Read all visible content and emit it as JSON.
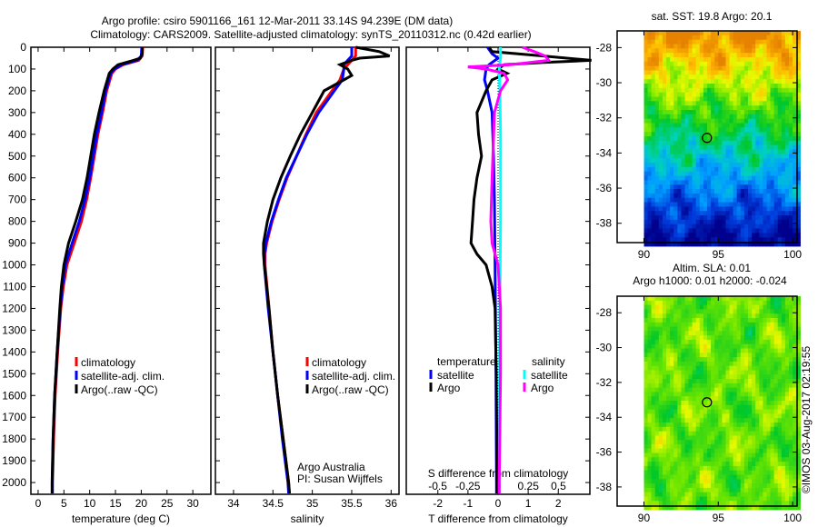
{
  "title": {
    "line1": "Argo profile: csiro 5901166_161 12-Mar-2011 33.14S 94.239E (DM data)",
    "line2": "Climatology: CARS2009. Satellite-adjusted climatology: synTS_20110312.nc (0.42d earlier)"
  },
  "footer": "©IMOS 03-Aug-2017 02:19:55",
  "chart_data": [
    {
      "type": "line",
      "id": "temperature",
      "xlabel": "temperature (deg C)",
      "ylabel": "",
      "xlim": [
        -1.4,
        33.5
      ],
      "ylim": [
        2054,
        0
      ],
      "xticks": [
        "0",
        "5",
        "10",
        "15",
        "20",
        "25",
        "30"
      ],
      "yticks": [
        "0",
        "100",
        "200",
        "300",
        "400",
        "500",
        "600",
        "700",
        "800",
        "900",
        "1000",
        "1100",
        "1200",
        "1300",
        "1400",
        "1500",
        "1600",
        "1700",
        "1800",
        "1900",
        "2000"
      ],
      "legend": [
        "climatology",
        "satellite-adj. clim.",
        "Argo(..raw -QC)"
      ],
      "series": [
        {
          "name": "climatology",
          "color": "#ff0000",
          "depth": [
            0,
            40,
            60,
            80,
            100,
            120,
            200,
            300,
            400,
            500,
            600,
            700,
            800,
            900,
            1000,
            1100,
            1200,
            1400,
            1600,
            1800,
            2000,
            2050
          ],
          "values": [
            20.3,
            20.2,
            19.5,
            16.5,
            15,
            14.3,
            13.3,
            12.5,
            11.6,
            10.9,
            10.2,
            9.4,
            8.4,
            7.0,
            5.6,
            4.9,
            4.4,
            3.8,
            3.3,
            3.0,
            2.8,
            2.8
          ]
        },
        {
          "name": "satellite-adj. clim.",
          "color": "#0000ff",
          "depth": [
            0,
            40,
            60,
            80,
            100,
            120,
            200,
            300,
            400,
            500,
            600,
            700,
            800,
            900,
            1000,
            1100,
            1200,
            1400,
            1600,
            1800,
            2000,
            2050
          ],
          "values": [
            20.1,
            20.0,
            19.2,
            16.2,
            14.8,
            14.1,
            13.1,
            12.3,
            11.4,
            10.7,
            10.0,
            9.1,
            8.0,
            6.6,
            5.3,
            4.7,
            4.3,
            3.7,
            3.2,
            2.9,
            2.75,
            2.75
          ]
        },
        {
          "name": "Argo(..raw -QC)",
          "color": "#000000",
          "depth": [
            0,
            30,
            50,
            60,
            80,
            100,
            120,
            200,
            300,
            400,
            500,
            600,
            700,
            800,
            900,
            1000,
            1100,
            1200,
            1400,
            1600,
            1800,
            2000,
            2050
          ],
          "values": [
            20.2,
            20.2,
            19.8,
            18.5,
            15.5,
            14.5,
            13.8,
            12.8,
            11.8,
            10.9,
            10.2,
            9.5,
            8.6,
            7.3,
            5.9,
            5.0,
            4.5,
            4.2,
            3.7,
            3.2,
            2.9,
            2.7,
            2.7
          ]
        }
      ]
    },
    {
      "type": "line",
      "id": "salinity",
      "xlabel": "salinity",
      "xlim": [
        33.77,
        36.1
      ],
      "ylim": [
        2054,
        0
      ],
      "xticks": [
        "34",
        "34.5",
        "35",
        "35.5",
        "36"
      ],
      "legend": [
        "climatology",
        "satellite-adj. clim.",
        "Argo(..raw -QC)"
      ],
      "annotations": [
        "Argo Australia",
        "PI: Susan Wijffels"
      ],
      "series": [
        {
          "name": "climatology",
          "color": "#ff0000",
          "depth": [
            0,
            40,
            60,
            80,
            100,
            150,
            200,
            300,
            400,
            500,
            600,
            700,
            800,
            900,
            950,
            1000,
            1200,
            1400,
            1600,
            1800,
            2000,
            2050
          ],
          "values": [
            35.55,
            35.55,
            35.5,
            35.45,
            35.4,
            35.35,
            35.25,
            35.05,
            34.92,
            34.8,
            34.68,
            34.58,
            34.49,
            34.42,
            34.4,
            34.4,
            34.45,
            34.5,
            34.56,
            34.63,
            34.7,
            34.71
          ]
        },
        {
          "name": "satellite-adj. clim.",
          "color": "#0000ff",
          "depth": [
            0,
            40,
            60,
            80,
            100,
            150,
            200,
            300,
            400,
            500,
            600,
            700,
            800,
            900,
            950,
            1000,
            1200,
            1400,
            1600,
            1800,
            2000,
            2050
          ],
          "values": [
            35.5,
            35.5,
            35.45,
            35.4,
            35.4,
            35.38,
            35.28,
            35.08,
            34.93,
            34.8,
            34.67,
            34.57,
            34.48,
            34.41,
            34.39,
            34.39,
            34.44,
            34.5,
            34.56,
            34.62,
            34.69,
            34.7
          ]
        },
        {
          "name": "Argo(..raw -QC)",
          "color": "#000000",
          "depth": [
            0,
            20,
            40,
            50,
            60,
            80,
            100,
            130,
            200,
            300,
            400,
            500,
            600,
            700,
            800,
            900,
            950,
            1000,
            1200,
            1400,
            1600,
            1800,
            2000,
            2050
          ],
          "values": [
            35.55,
            35.85,
            35.98,
            35.6,
            35.5,
            35.35,
            35.45,
            35.5,
            35.15,
            35.0,
            34.85,
            34.72,
            34.6,
            34.5,
            34.43,
            34.38,
            34.38,
            34.39,
            34.45,
            34.5,
            34.56,
            34.63,
            34.7,
            34.71
          ]
        }
      ]
    },
    {
      "type": "line",
      "id": "difference",
      "xlabel": "T difference from climatology",
      "x2label": "S difference from climatology",
      "xlim": [
        -3.05,
        3.05
      ],
      "x2lim": [
        -0.76,
        0.76
      ],
      "xticks": [
        "-2",
        "-1",
        "0",
        "1",
        "2"
      ],
      "x2ticks": [
        "-0.5",
        "-0.25",
        "0",
        "0.25",
        "0.5"
      ],
      "legend": {
        "temperature_title": "temperature",
        "salinity_title": "salinity",
        "items": [
          "satellite",
          "Argo",
          "satellite",
          "Argo"
        ]
      },
      "series": [
        {
          "name": "temperature satellite",
          "axis": "T",
          "color": "#0000ff",
          "depth": [
            0,
            30,
            50,
            80,
            100,
            150,
            200,
            300,
            500,
            700,
            1000,
            1500,
            2000,
            2050
          ],
          "values": [
            -0.35,
            -0.2,
            0,
            -0.3,
            -0.4,
            -0.45,
            -0.35,
            -0.2,
            -0.15,
            -0.12,
            -0.1,
            -0.07,
            -0.05,
            -0.05
          ]
        },
        {
          "name": "temperature Argo",
          "axis": "T",
          "color": "#000000",
          "depth": [
            0,
            20,
            40,
            60,
            70,
            80,
            100,
            120,
            150,
            200,
            300,
            400,
            500,
            600,
            700,
            800,
            900,
            950,
            1000,
            1100,
            1200,
            1500,
            2000,
            2050
          ],
          "values": [
            -0.3,
            -0.2,
            1.5,
            3.1,
            1.5,
            0.2,
            0,
            0.3,
            -0.2,
            -0.4,
            -0.7,
            -0.65,
            -0.55,
            -0.7,
            -0.8,
            -0.85,
            -0.9,
            -0.7,
            -0.4,
            -0.2,
            -0.1,
            -0.06,
            -0.03,
            -0.03
          ]
        },
        {
          "name": "salinity satellite",
          "axis": "S",
          "color": "#00ffff",
          "depth": [
            0,
            50,
            100,
            200,
            400,
            800,
            1200,
            2000,
            2050
          ],
          "values": [
            0.02,
            0.02,
            0.01,
            0.015,
            0.02,
            0.02,
            0.015,
            0.01,
            0.01
          ]
        },
        {
          "name": "salinity Argo",
          "axis": "S",
          "color": "#ff00ff",
          "depth": [
            0,
            20,
            40,
            60,
            80,
            90,
            100,
            120,
            150,
            200,
            300,
            600,
            800,
            900,
            1000,
            1200,
            1500,
            2000,
            2050
          ],
          "values": [
            0.2,
            0.3,
            0.39,
            0.42,
            0.1,
            -0.25,
            -0.1,
            0.05,
            0.08,
            0.02,
            -0.03,
            -0.05,
            -0.06,
            -0.05,
            0.0,
            0.02,
            0.02,
            0.01,
            0.01
          ]
        }
      ]
    },
    {
      "type": "heatmap",
      "id": "sst-map",
      "title": "sat. SST: 19.8 Argo: 20.1",
      "xticks": [
        "90",
        "95",
        "100"
      ],
      "yticks": [
        "-28",
        "-30",
        "-32",
        "-34",
        "-36",
        "-38"
      ],
      "xlim": [
        88.2,
        100.3
      ],
      "ylim": [
        -39.1,
        -27.05
      ],
      "marker": {
        "lon": 94.239,
        "lat": -33.14
      }
    },
    {
      "type": "heatmap",
      "id": "sla-map",
      "title": "Altim. SLA: 0.01",
      "subtitle": "Argo h1000: 0.01 h2000: -0.024",
      "xticks": [
        "90",
        "95",
        "100"
      ],
      "yticks": [
        "-28",
        "-30",
        "-32",
        "-34",
        "-36",
        "-38"
      ],
      "xlim": [
        88.2,
        100.3
      ],
      "ylim": [
        -39.1,
        -27.05
      ],
      "marker": {
        "lon": 94.239,
        "lat": -33.14
      }
    }
  ]
}
